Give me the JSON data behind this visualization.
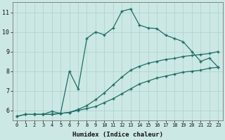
{
  "background_color": "#cce8e4",
  "grid_color": "#aad0cc",
  "line_color": "#1e6e65",
  "xlabel": "Humidex (Indice chaleur)",
  "ylim": [
    5.5,
    11.5
  ],
  "xlim": [
    -0.5,
    23.5
  ],
  "yticks": [
    6,
    7,
    8,
    9,
    10,
    11
  ],
  "xticks": [
    0,
    1,
    2,
    3,
    4,
    5,
    6,
    7,
    8,
    9,
    10,
    11,
    12,
    13,
    14,
    15,
    16,
    17,
    18,
    19,
    20,
    21,
    22,
    23
  ],
  "line1_x": [
    0,
    1,
    2,
    3,
    4,
    5,
    6,
    7,
    8,
    9,
    10,
    11,
    12,
    13,
    14,
    15,
    16,
    17,
    18,
    19,
    20,
    21,
    22,
    23
  ],
  "line1_y": [
    5.7,
    5.8,
    5.8,
    5.8,
    5.8,
    5.85,
    5.9,
    6.0,
    6.1,
    6.2,
    6.4,
    6.6,
    6.85,
    7.1,
    7.35,
    7.5,
    7.65,
    7.75,
    7.85,
    7.95,
    8.0,
    8.05,
    8.15,
    8.2
  ],
  "line2_x": [
    0,
    1,
    2,
    3,
    4,
    5,
    6,
    7,
    8,
    9,
    10,
    11,
    12,
    13,
    14,
    15,
    16,
    17,
    18,
    19,
    20,
    21,
    22,
    23
  ],
  "line2_y": [
    5.7,
    5.8,
    5.8,
    5.8,
    5.8,
    5.85,
    5.9,
    6.05,
    6.25,
    6.55,
    6.9,
    7.3,
    7.7,
    8.05,
    8.25,
    8.4,
    8.5,
    8.6,
    8.65,
    8.75,
    8.8,
    8.85,
    8.9,
    9.0
  ],
  "line3_x": [
    2,
    3,
    4,
    5,
    6,
    7,
    8,
    9,
    10,
    11,
    12,
    13,
    14,
    15,
    16,
    17,
    18,
    19,
    20,
    21,
    22,
    23
  ],
  "line3_y": [
    5.8,
    5.8,
    5.95,
    5.85,
    8.0,
    7.1,
    9.67,
    10.0,
    9.85,
    10.2,
    11.05,
    11.17,
    10.35,
    10.2,
    10.17,
    9.83,
    9.67,
    9.5,
    9.0,
    8.5,
    8.67,
    8.2
  ],
  "marker_size": 2.5,
  "linewidth": 0.9
}
